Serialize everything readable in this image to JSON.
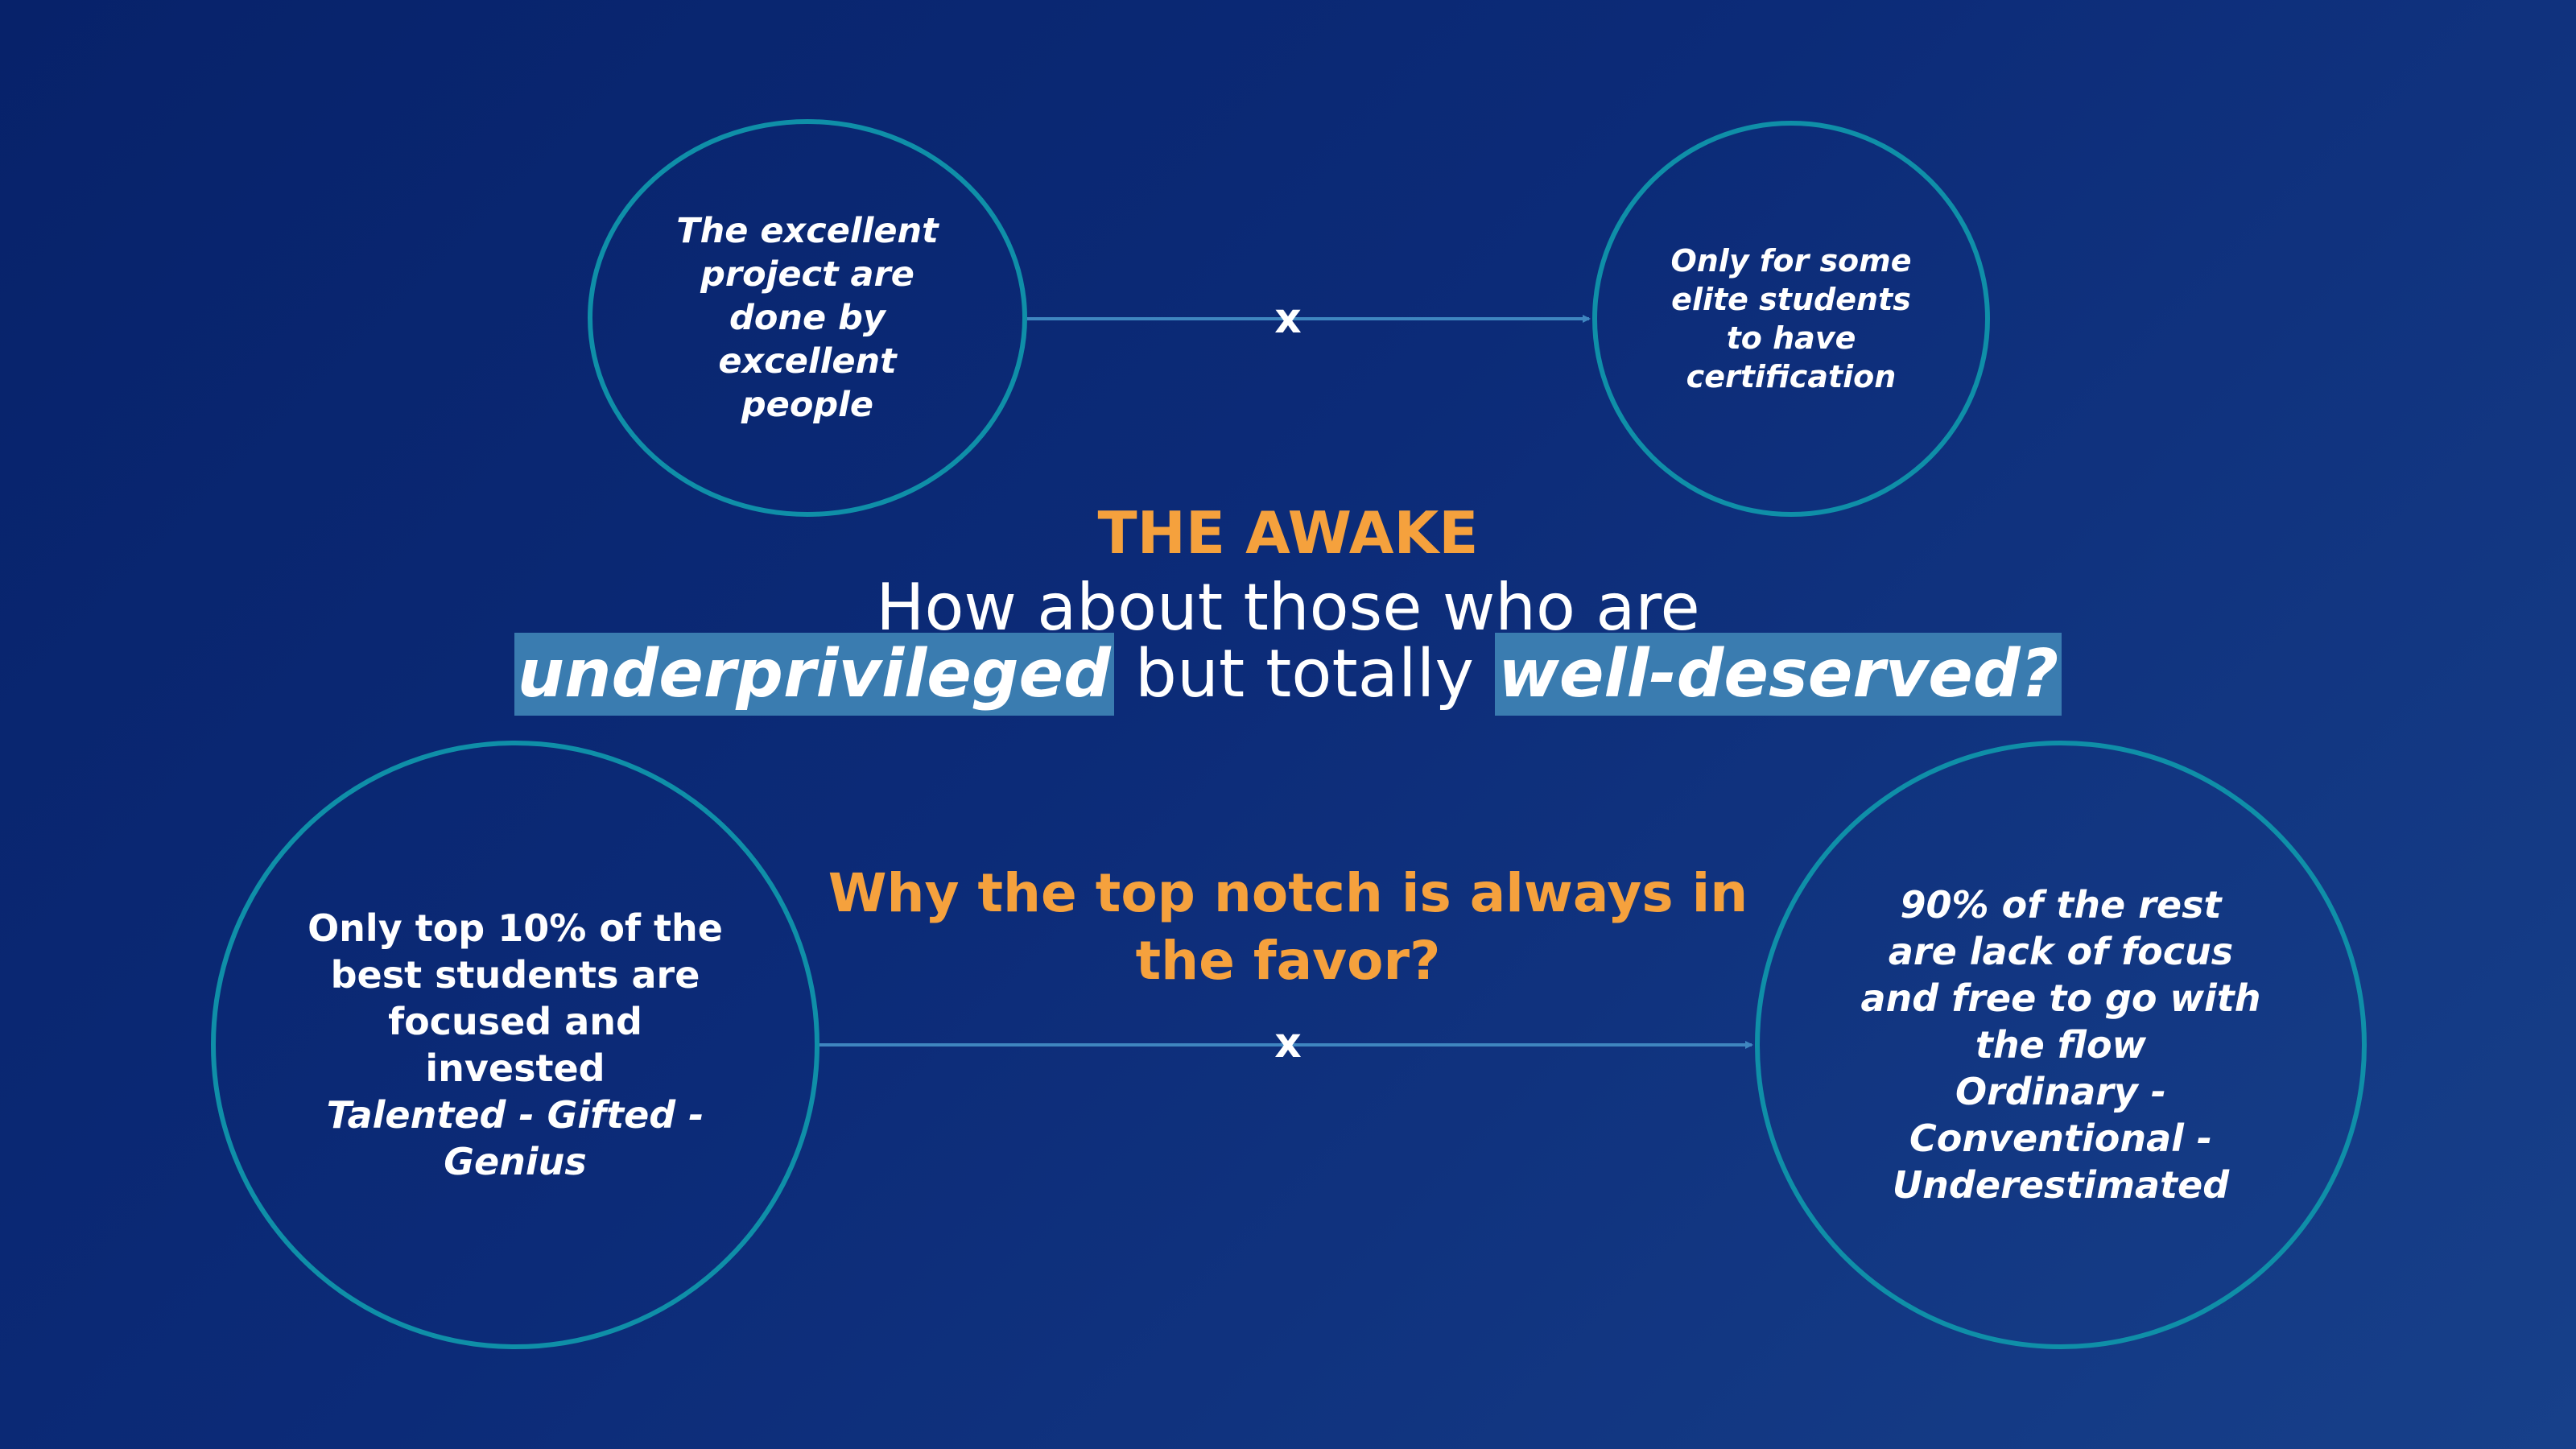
{
  "slide": {
    "title": "THE AWAKE",
    "question_line1": "How about those who are",
    "question_highlight1": "underprivileged",
    "question_middle": "but totally",
    "question_highlight2": "well-deserved?",
    "why_question": "Why the top notch is always in the favor?",
    "colors": {
      "accent_orange": "#f5a13d",
      "circle_border": "#0f8fa8",
      "connector": "#3f86c0",
      "highlight": "#3a7cb0"
    }
  },
  "top_row": {
    "left_circle": {
      "lines": [
        "The excellent",
        "project are",
        "done by",
        "excellent",
        "people"
      ]
    },
    "connector_label": "x",
    "right_circle": {
      "lines": [
        "Only for some",
        "elite students",
        "to have",
        "certification"
      ]
    }
  },
  "bottom_row": {
    "left_circle": {
      "lines": [
        "Only top 10% of the",
        "best students are",
        "focused and",
        "invested"
      ],
      "italic_lines": [
        "Talented - Gifted -",
        "Genius"
      ]
    },
    "connector_label": "x",
    "right_circle": {
      "lines": [
        "90% of the rest",
        "are lack of focus",
        "and free to go with",
        "the flow",
        "Ordinary -",
        "Conventional -",
        "Underestimated"
      ]
    }
  }
}
